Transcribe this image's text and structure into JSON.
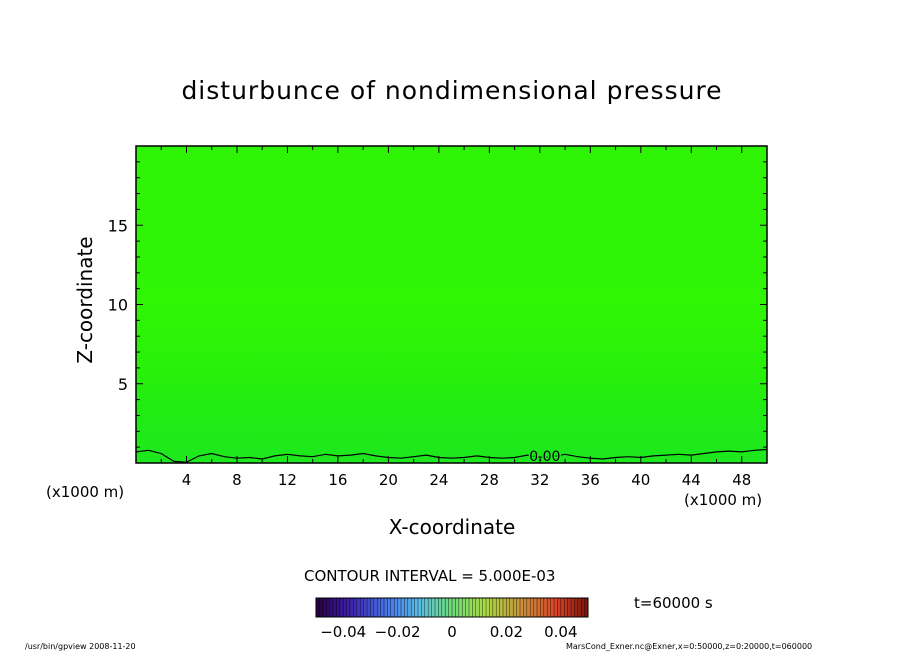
{
  "chart_data": {
    "type": "heatmap",
    "title": "disturbunce of nondimensional pressure",
    "xlabel": "X-coordinate",
    "ylabel": "Z-coordinate",
    "x_unit_left": "(x1000 m)",
    "x_unit_right": "(x1000 m)",
    "xlim": [
      0,
      50
    ],
    "ylim": [
      0,
      20
    ],
    "x_ticks": [
      4,
      8,
      12,
      16,
      20,
      24,
      28,
      32,
      36,
      40,
      44,
      48
    ],
    "y_ticks": [
      5,
      10,
      15
    ],
    "contour_label": "0.00",
    "contour_interval_text": "CONTOUR INTERVAL = 5.000E-03",
    "time_text": "t=60000 s",
    "colorbar": {
      "min": -0.05,
      "max": 0.05,
      "tick_values": [
        -0.04,
        -0.02,
        0,
        0.02,
        0.04
      ],
      "tick_labels": [
        "−0.04",
        "−0.02",
        "0",
        "0.02",
        "0.04"
      ]
    },
    "field": {
      "description_rows_z": [
        0,
        3,
        6,
        10,
        14,
        20
      ],
      "values_rows": [
        0.0025,
        0.006,
        0.009,
        0.0115,
        0.0105,
        0.0105
      ],
      "fill_colors": [
        "#1ee81e",
        "#20ec14",
        "#29f00a",
        "#30f505",
        "#2ff405",
        "#2ff405"
      ]
    },
    "footer_left": "/usr/bin/gpview   2008-11-20",
    "footer_right": "MarsCond_Exner.nc@Exner,x=0:50000,z=0:20000,t=060000"
  }
}
